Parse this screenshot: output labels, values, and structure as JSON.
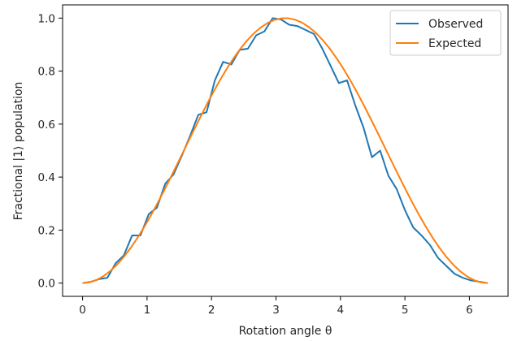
{
  "chart_data": {
    "type": "line",
    "xlabel": "Rotation angle θ",
    "ylabel": "Fractional |1⟩ population",
    "xlim": [
      -0.31,
      6.6
    ],
    "ylim": [
      -0.05,
      1.05
    ],
    "xticks": [
      0,
      1,
      2,
      3,
      4,
      5,
      6
    ],
    "yticks": [
      0.0,
      0.2,
      0.4,
      0.6,
      0.8,
      1.0
    ],
    "xtick_labels": [
      "0",
      "1",
      "2",
      "3",
      "4",
      "5",
      "6"
    ],
    "ytick_labels": [
      "0.0",
      "0.2",
      "0.4",
      "0.6",
      "0.8",
      "1.0"
    ],
    "legend_position": "top-right",
    "grid": false,
    "series": [
      {
        "name": "Observed",
        "color": "#1f77b4",
        "x": [
          0.0,
          0.128,
          0.256,
          0.385,
          0.513,
          0.641,
          0.769,
          0.898,
          1.026,
          1.154,
          1.282,
          1.411,
          1.539,
          1.667,
          1.795,
          1.923,
          2.052,
          2.18,
          2.308,
          2.436,
          2.565,
          2.693,
          2.821,
          2.949,
          3.077,
          3.206,
          3.334,
          3.462,
          3.59,
          3.718,
          3.847,
          3.975,
          4.103,
          4.231,
          4.36,
          4.488,
          4.616,
          4.744,
          4.872,
          5.001,
          5.129,
          5.257,
          5.385,
          5.514,
          5.642,
          5.77,
          5.898,
          6.026,
          6.155,
          6.283
        ],
        "values": [
          0.0,
          0.005,
          0.015,
          0.02,
          0.075,
          0.105,
          0.18,
          0.18,
          0.26,
          0.285,
          0.375,
          0.41,
          0.48,
          0.555,
          0.635,
          0.645,
          0.765,
          0.835,
          0.825,
          0.88,
          0.885,
          0.935,
          0.95,
          1.0,
          0.995,
          0.975,
          0.97,
          0.955,
          0.94,
          0.885,
          0.82,
          0.755,
          0.765,
          0.67,
          0.585,
          0.475,
          0.5,
          0.405,
          0.355,
          0.275,
          0.21,
          0.18,
          0.145,
          0.095,
          0.065,
          0.035,
          0.02,
          0.01,
          0.005,
          0.0
        ]
      },
      {
        "name": "Expected",
        "color": "#ff7f0e",
        "function": "sin^2(x/2)",
        "samples": 60
      }
    ]
  }
}
